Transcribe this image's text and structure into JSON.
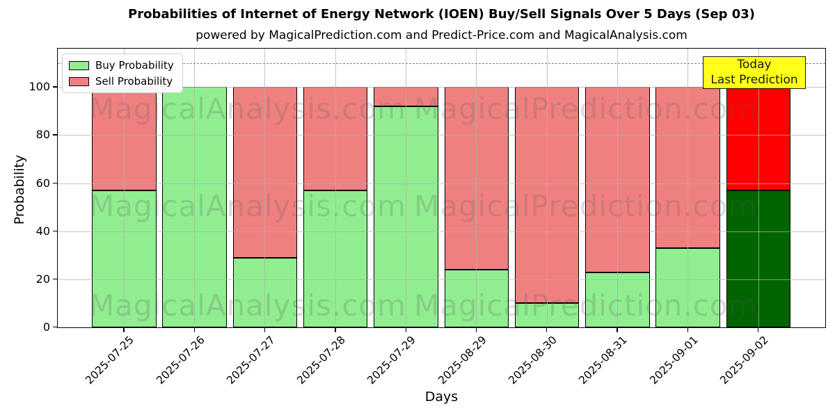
{
  "chart_data": {
    "type": "bar",
    "stacked": true,
    "title": "Probabilities of Internet of Energy Network (IOEN) Buy/Sell Signals Over 5 Days (Sep 03)",
    "subtitle": "powered by MagicalPrediction.com and Predict-Price.com and MagicalAnalysis.com",
    "xlabel": "Days",
    "ylabel": "Probability",
    "categories": [
      "2025-07-25",
      "2025-07-26",
      "2025-07-27",
      "2025-07-28",
      "2025-07-29",
      "2025-08-29",
      "2025-08-30",
      "2025-08-31",
      "2025-09-01",
      "2025-09-02"
    ],
    "series": [
      {
        "name": "Buy Probability",
        "color": "#90ee90",
        "values": [
          57,
          100,
          29,
          57,
          92,
          24,
          10,
          23,
          33,
          57
        ]
      },
      {
        "name": "Sell Probability",
        "color": "#f08080",
        "values": [
          43,
          0,
          71,
          43,
          8,
          76,
          90,
          77,
          67,
          43
        ]
      }
    ],
    "today_bar": {
      "index": 9,
      "buy_color": "#006400",
      "sell_color": "#ff0000"
    },
    "yticks": [
      0,
      20,
      40,
      60,
      80,
      100
    ],
    "ylim": [
      0,
      116
    ],
    "grid": true,
    "legend_position": "upper-left",
    "dashed_line": {
      "y": 110,
      "color": "#808080"
    },
    "annotation": {
      "line1": "Today",
      "line2": "Last Prediction",
      "bg_color": "#ffff00"
    },
    "watermarks": {
      "left_text": "MagicalAnalysis.com",
      "right_text": "MagicalPrediction.com"
    }
  }
}
